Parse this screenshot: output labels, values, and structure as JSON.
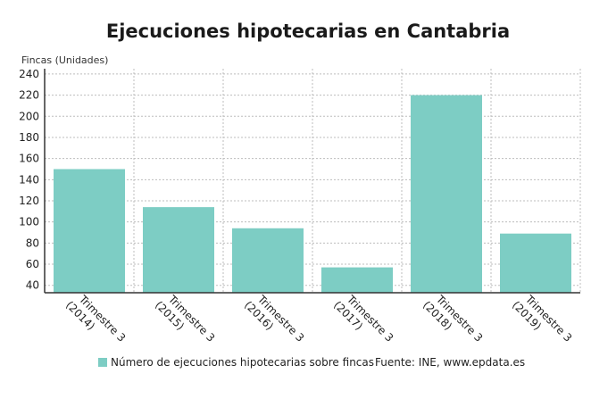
{
  "chart_data": {
    "type": "bar",
    "title": "Ejecuciones hipotecarias en Cantabria",
    "ylabel": "Fincas (Unidades)",
    "xlabel": "",
    "categories": [
      {
        "line1": "Trimestre 3",
        "line2": "(2014)"
      },
      {
        "line1": "Trimestre 3",
        "line2": "(2015)"
      },
      {
        "line1": "Trimestre 3",
        "line2": "(2016)"
      },
      {
        "line1": "Trimestre 3",
        "line2": "(2017)"
      },
      {
        "line1": "Trimestre 3",
        "line2": "(2018)"
      },
      {
        "line1": "Trimestre 3",
        "line2": "(2019)"
      }
    ],
    "series": [
      {
        "name": "Número de ejecuciones hipotecarias sobre fincas",
        "color": "#7dcdc4",
        "values": [
          150,
          114,
          94,
          57,
          220,
          89
        ]
      }
    ],
    "ylim": [
      33,
      245
    ],
    "yticks": [
      40,
      60,
      80,
      100,
      120,
      140,
      160,
      180,
      200,
      220,
      240
    ],
    "grid": true,
    "legend_position": "bottom",
    "source": "Fuente: INE, www.epdata.es"
  }
}
